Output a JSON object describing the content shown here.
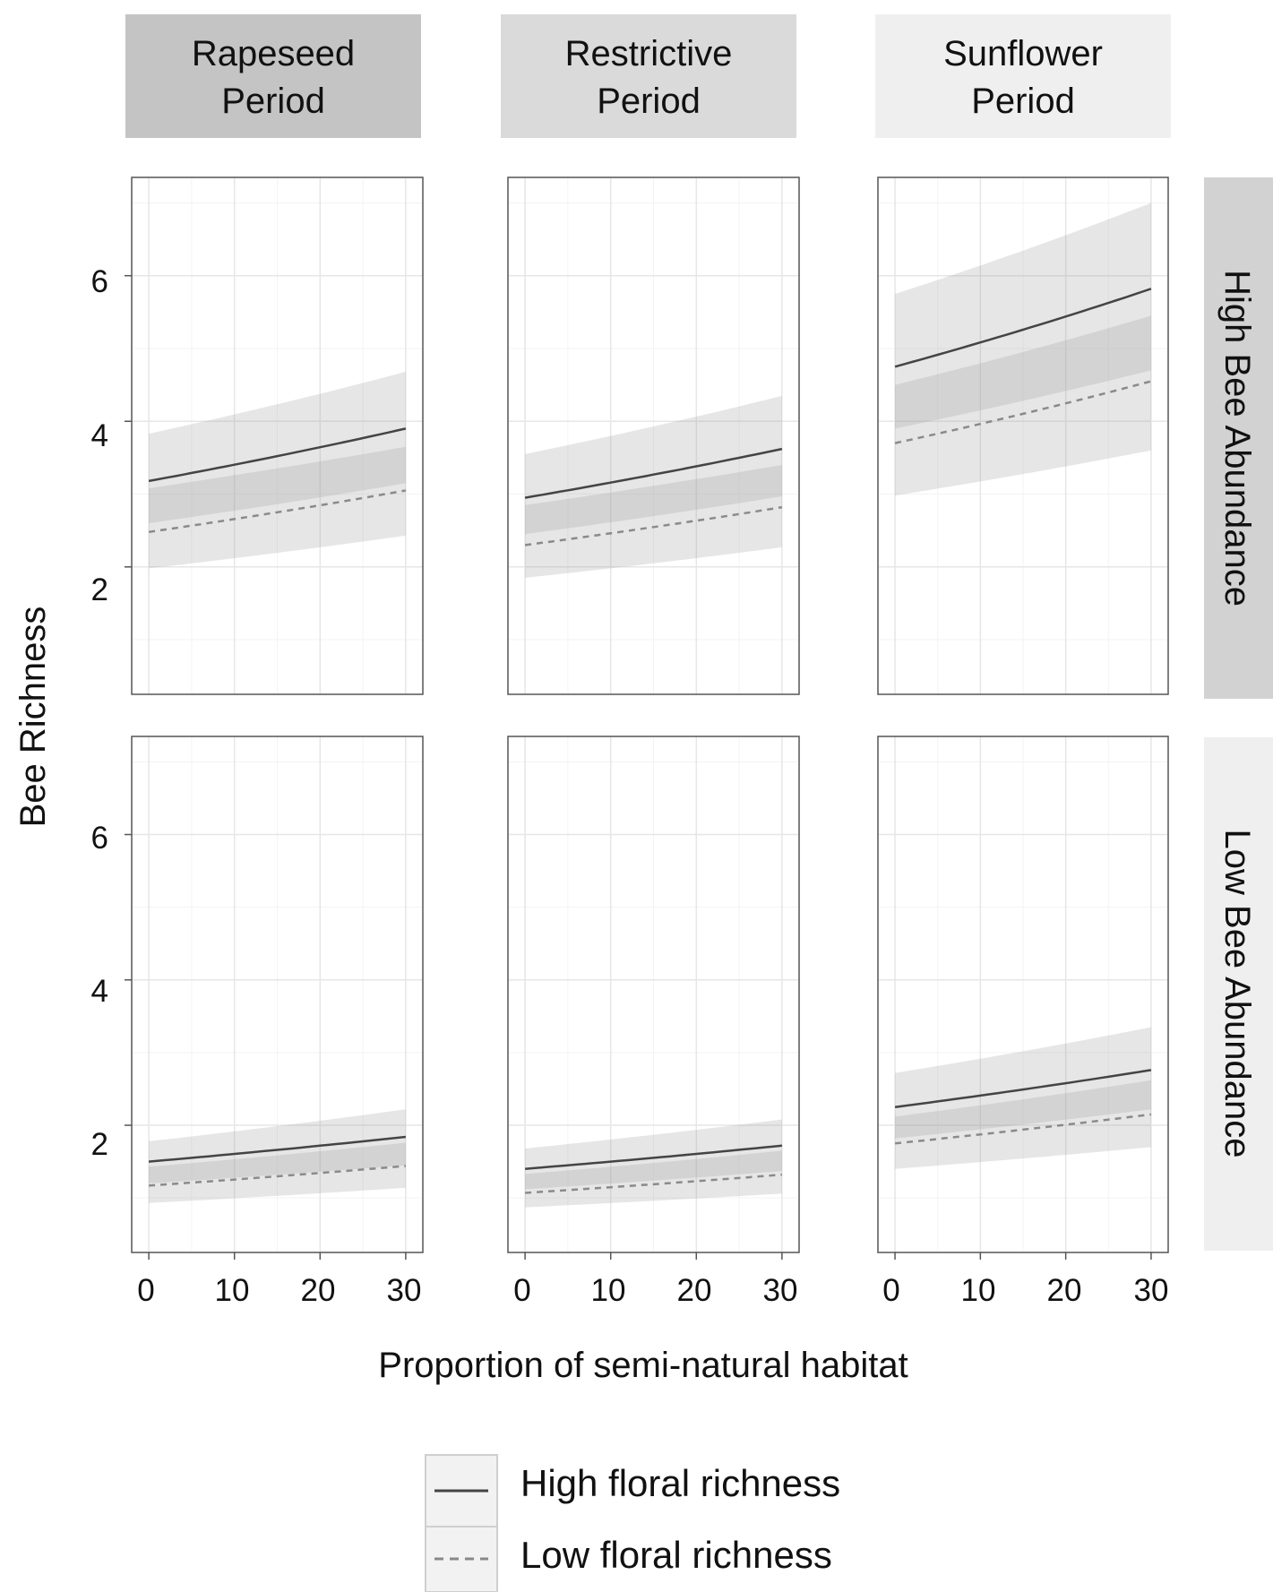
{
  "chart_data": {
    "type": "line",
    "layout": "facet-grid",
    "xlabel": "Proportion of semi-natural habitat",
    "ylabel": "Bee Richness",
    "xlim": [
      -2,
      32
    ],
    "ylim": [
      0.25,
      7.35
    ],
    "xticks": [
      0,
      10,
      20,
      30
    ],
    "yticks": [
      2,
      4,
      6
    ],
    "grid": true,
    "col_facets": [
      {
        "label_line1": "Rapeseed",
        "label_line2": "Period",
        "color": "#c4c4c4"
      },
      {
        "label_line1": "Restrictive",
        "label_line2": "Period",
        "color": "#dadada"
      },
      {
        "label_line1": "Sunflower",
        "label_line2": "Period",
        "color": "#efefef"
      }
    ],
    "row_facets": [
      {
        "label": "High Bee Abundance",
        "color": "#d2d2d2"
      },
      {
        "label": "Low Bee Abundance",
        "color": "#efefef"
      }
    ],
    "legend": {
      "position": "bottom",
      "entries": [
        {
          "label": "High floral richness",
          "linestyle": "solid"
        },
        {
          "label": "Low floral richness",
          "linestyle": "dashed"
        }
      ]
    },
    "panels": [
      {
        "row": 0,
        "col": 0,
        "x": [
          0,
          30
        ],
        "series": [
          {
            "name": "High floral richness",
            "y": [
              3.18,
              3.9
            ],
            "lower": [
              2.6,
              3.15
            ],
            "upper": [
              3.83,
              4.68
            ]
          },
          {
            "name": "Low floral richness",
            "y": [
              2.48,
              3.05
            ],
            "lower": [
              1.98,
              2.43
            ],
            "upper": [
              3.08,
              3.65
            ]
          }
        ]
      },
      {
        "row": 0,
        "col": 1,
        "x": [
          0,
          30
        ],
        "series": [
          {
            "name": "High floral richness",
            "y": [
              2.95,
              3.62
            ],
            "lower": [
              2.45,
              2.97
            ],
            "upper": [
              3.55,
              4.35
            ]
          },
          {
            "name": "Low floral richness",
            "y": [
              2.3,
              2.82
            ],
            "lower": [
              1.85,
              2.27
            ],
            "upper": [
              2.85,
              3.4
            ]
          }
        ]
      },
      {
        "row": 0,
        "col": 2,
        "x": [
          0,
          30
        ],
        "series": [
          {
            "name": "High floral richness",
            "y": [
              4.75,
              5.82
            ],
            "lower": [
              3.9,
              4.7
            ],
            "upper": [
              5.75,
              7.0
            ]
          },
          {
            "name": "Low floral richness",
            "y": [
              3.7,
              4.55
            ],
            "lower": [
              2.98,
              3.6
            ],
            "upper": [
              4.5,
              5.45
            ]
          }
        ]
      },
      {
        "row": 1,
        "col": 0,
        "x": [
          0,
          30
        ],
        "series": [
          {
            "name": "High floral richness",
            "y": [
              1.5,
              1.84
            ],
            "lower": [
              1.2,
              1.45
            ],
            "upper": [
              1.78,
              2.22
            ]
          },
          {
            "name": "Low floral richness",
            "y": [
              1.17,
              1.44
            ],
            "lower": [
              0.93,
              1.14
            ],
            "upper": [
              1.43,
              1.76
            ]
          }
        ]
      },
      {
        "row": 1,
        "col": 1,
        "x": [
          0,
          30
        ],
        "series": [
          {
            "name": "High floral richness",
            "y": [
              1.4,
              1.72
            ],
            "lower": [
              1.12,
              1.37
            ],
            "upper": [
              1.68,
              2.08
            ]
          },
          {
            "name": "Low floral richness",
            "y": [
              1.07,
              1.32
            ],
            "lower": [
              0.87,
              1.06
            ],
            "upper": [
              1.33,
              1.65
            ]
          }
        ]
      },
      {
        "row": 1,
        "col": 2,
        "x": [
          0,
          30
        ],
        "series": [
          {
            "name": "High floral richness",
            "y": [
              2.25,
              2.76
            ],
            "lower": [
              1.82,
              2.22
            ],
            "upper": [
              2.72,
              3.35
            ]
          },
          {
            "name": "Low floral richness",
            "y": [
              1.75,
              2.15
            ],
            "lower": [
              1.4,
              1.7
            ],
            "upper": [
              2.12,
              2.62
            ]
          }
        ]
      }
    ]
  }
}
